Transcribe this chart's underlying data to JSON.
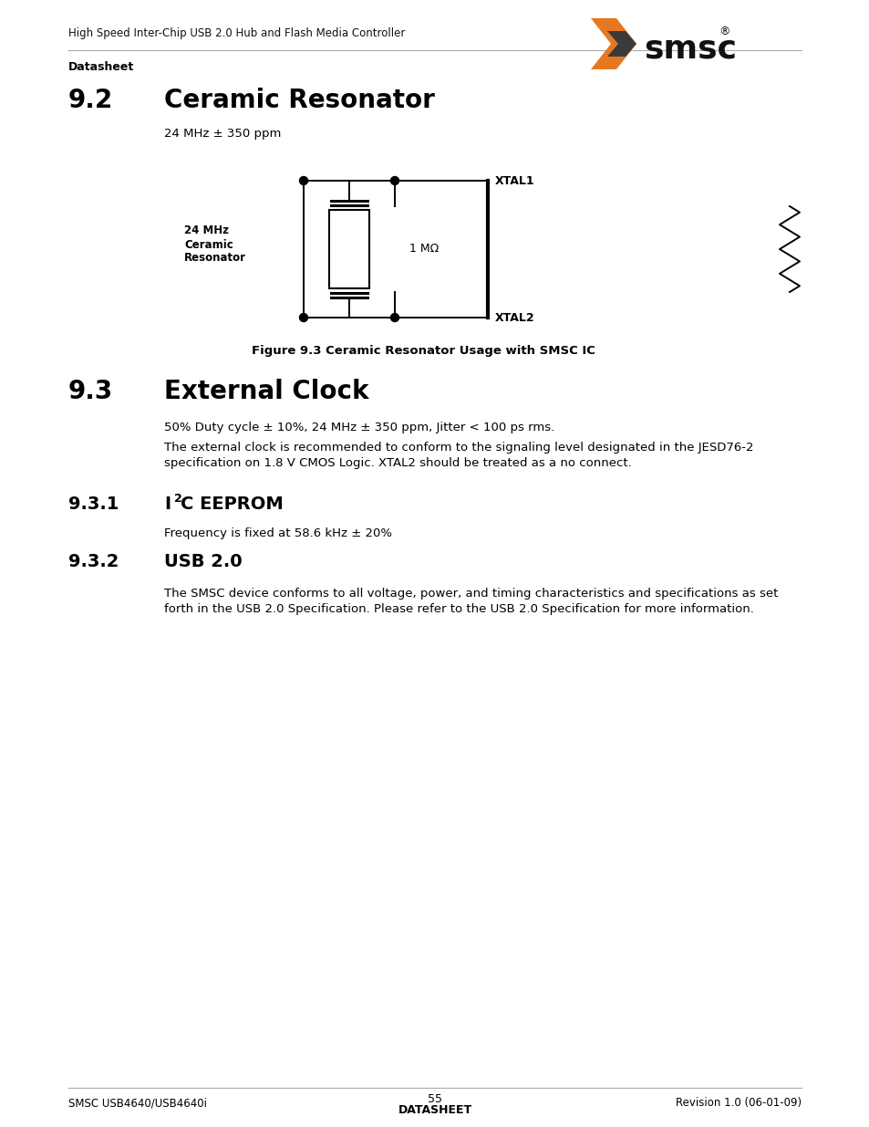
{
  "bg_color": "#ffffff",
  "header_text": "High Speed Inter-Chip USB 2.0 Hub and Flash Media Controller",
  "header_label": "Datasheet",
  "section_92_num": "9.2",
  "section_92_title": "Ceramic Resonator",
  "section_92_subtitle": "24 MHz ± 350 ppm",
  "fig_caption": "Figure 9.3 Ceramic Resonator Usage with SMSC IC",
  "section_93_num": "9.3",
  "section_93_title": "External Clock",
  "section_93_body1": "50% Duty cycle ± 10%, 24 MHz ± 350 ppm, Jitter < 100 ps rms.",
  "section_93_body2": "The external clock is recommended to conform to the signaling level designated in the JESD76-2 specification on 1.8 V CMOS Logic. XTAL2 should be treated as a no connect.",
  "section_931_num": "9.3.1",
  "section_931_title_pre": "I",
  "section_931_title_sup": "2",
  "section_931_title_post": "C EEPROM",
  "section_931_body": "Frequency is fixed at 58.6 kHz ± 20%",
  "section_932_num": "9.3.2",
  "section_932_title": "USB 2.0",
  "section_932_body": "The SMSC device conforms to all voltage, power, and timing characteristics and specifications as set forth in the USB 2.0 Specification. Please refer to the USB 2.0 Specification for more information.",
  "footer_left": "SMSC USB4640/USB4640i",
  "footer_center": "55",
  "footer_center_label": "DATASHEET",
  "footer_right": "Revision 1.0 (06-01-09)",
  "resonator_label": "24 MHz\nCeramic\nResonator",
  "resistor_label": "1 MΩ",
  "xtal1_label": "XTAL1",
  "xtal2_label": "XTAL2",
  "line_color": "#000000",
  "dot_color": "#000000",
  "text_color": "#000000",
  "orange_color": "#e87722",
  "dark_color": "#3a3a3a"
}
